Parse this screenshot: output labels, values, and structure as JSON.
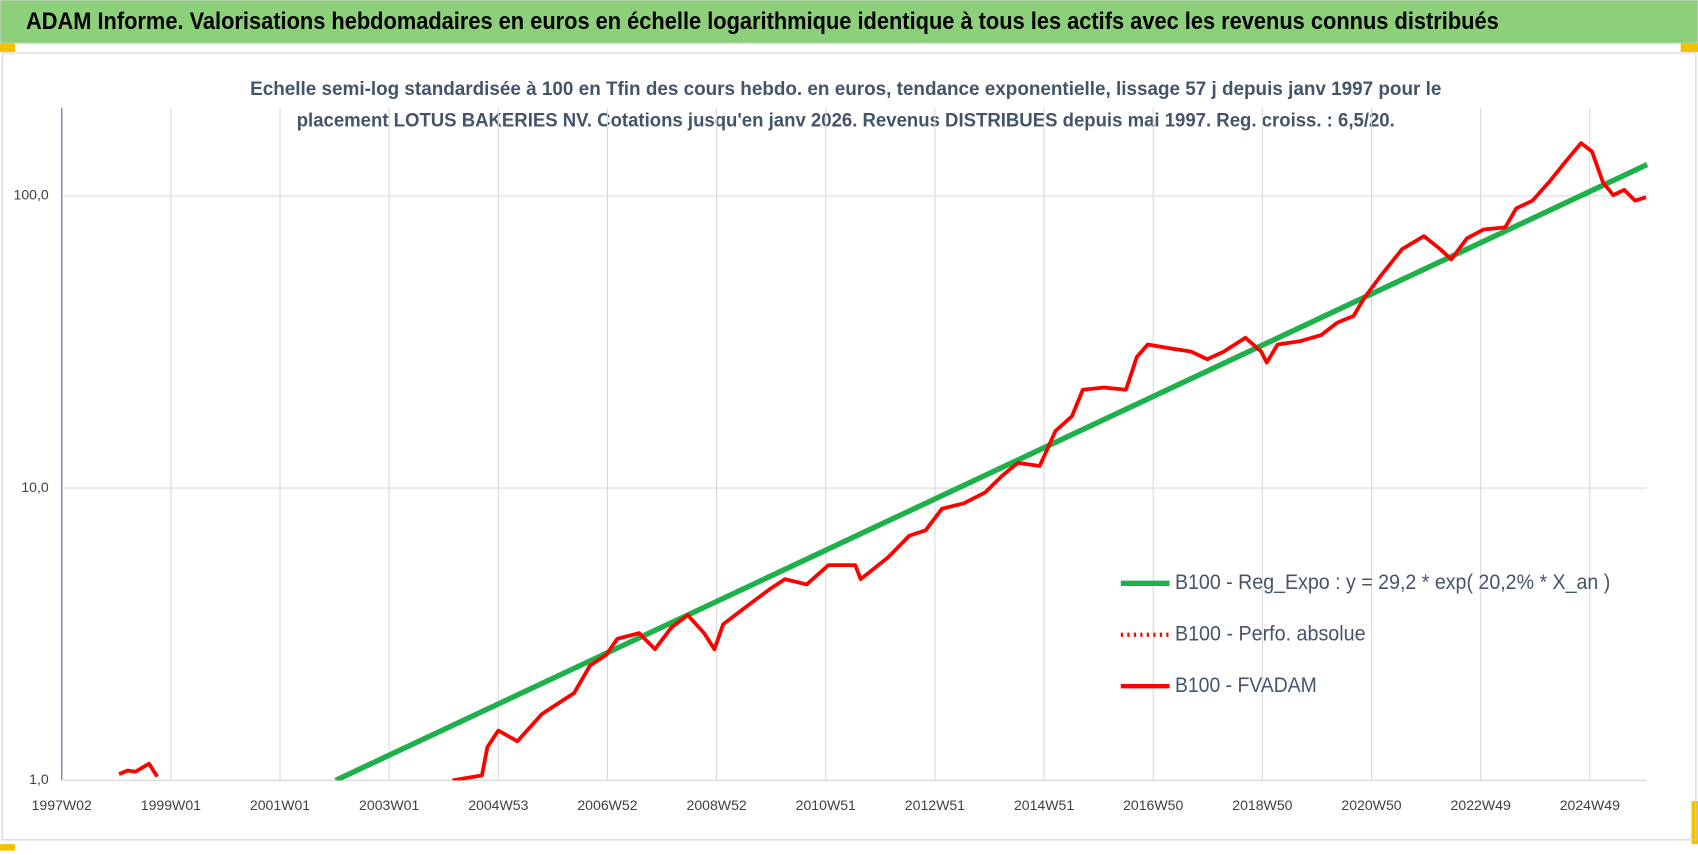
{
  "chart_data": {
    "type": "line",
    "title": "ADAM Informe. Valorisations hebdomadaires en euros en échelle logarithmique identique à tous les actifs avec les revenus connus distribués",
    "subtitle": [
      "Echelle semi-log standardisée à 100 en Tfin des cours hebdo. en euros, tendance exponentielle, lissage 57 j depuis janv 1997 pour le",
      "placement LOTUS BAKERIES NV. Cotations jusqu'en janv 2026. Revenus DISTRIBUES depuis mai 1997. Reg. croiss. : 6,5/20."
    ],
    "log_scale": true,
    "grid": true,
    "xlim": [
      1997,
      2026.03
    ],
    "ylim": [
      1,
      200
    ],
    "xticks": [
      {
        "value": 1997,
        "label": "1997W02"
      },
      {
        "value": 1999,
        "label": "1999W01"
      },
      {
        "value": 2001,
        "label": "2001W01"
      },
      {
        "value": 2003,
        "label": "2003W01"
      },
      {
        "value": 2005,
        "label": "2004W53"
      },
      {
        "value": 2007,
        "label": "2006W52"
      },
      {
        "value": 2009,
        "label": "2008W52"
      },
      {
        "value": 2011,
        "label": "2010W51"
      },
      {
        "value": 2013,
        "label": "2012W51"
      },
      {
        "value": 2015,
        "label": "2014W51"
      },
      {
        "value": 2017,
        "label": "2016W50"
      },
      {
        "value": 2019,
        "label": "2018W50"
      },
      {
        "value": 2021,
        "label": "2020W50"
      },
      {
        "value": 2023,
        "label": "2022W49"
      },
      {
        "value": 2025,
        "label": "2024W49"
      }
    ],
    "yticks": [
      {
        "value": 1,
        "label": "1,0"
      },
      {
        "value": 10,
        "label": "10,0"
      },
      {
        "value": 100,
        "label": "100,0"
      }
    ],
    "legend": "lower right",
    "series": [
      {
        "name": "B100 - Reg_Expo : y = 29,2 * exp( 20,2% *  X_an )",
        "color": "#1db04b",
        "dash": "solid",
        "x": [
          2002.02,
          2026.05
        ],
        "values": [
          1,
          128
        ]
      },
      {
        "name": "B100 - Perfo. absolue",
        "color": "#ff0000",
        "dash": "dotted",
        "x": [],
        "values": []
      },
      {
        "name": "B100 - FVADAM",
        "color": "#ff0000",
        "dash": "solid",
        "x": [
          1998.05,
          1998.21,
          1998.35,
          1998.6,
          1998.75,
          null,
          2004.16,
          2004.7,
          2004.8,
          2005.0,
          2005.35,
          2005.79,
          2006.09,
          2006.39,
          2006.68,
          2006.98,
          2007.18,
          2007.58,
          2007.87,
          2008.17,
          2008.47,
          2008.77,
          2008.96,
          2009.12,
          2009.56,
          2009.96,
          2010.25,
          2010.65,
          2011.05,
          2011.54,
          2011.64,
          2012.14,
          2012.53,
          2012.83,
          2013.13,
          2013.53,
          2013.92,
          2014.22,
          2014.52,
          2014.92,
          2015.21,
          2015.51,
          2015.71,
          2016.1,
          2016.5,
          2016.7,
          2016.9,
          2017.3,
          2017.7,
          2017.99,
          2018.29,
          2018.69,
          2018.98,
          2019.08,
          2019.28,
          2019.68,
          2020.08,
          2020.37,
          2020.67,
          2020.87,
          2021.17,
          2021.56,
          2021.96,
          2022.26,
          2022.46,
          2022.75,
          2023.05,
          2023.45,
          2023.65,
          2023.95,
          2024.25,
          2024.54,
          2024.84,
          2025.04,
          2025.24,
          2025.43,
          2025.63,
          2025.83,
          2026.03
        ],
        "values": [
          1.05,
          1.08,
          1.07,
          1.14,
          1.03,
          null,
          1.0,
          1.04,
          1.3,
          1.48,
          1.36,
          1.68,
          1.83,
          1.99,
          2.47,
          2.69,
          3.05,
          3.19,
          2.81,
          3.33,
          3.68,
          3.19,
          2.81,
          3.42,
          3.95,
          4.49,
          4.88,
          4.68,
          5.45,
          5.45,
          4.88,
          5.79,
          6.87,
          7.17,
          8.5,
          8.87,
          9.66,
          10.97,
          12.2,
          11.9,
          15.7,
          17.6,
          21.7,
          22.1,
          21.7,
          28.1,
          31.0,
          30.1,
          29.3,
          27.6,
          29.3,
          32.7,
          29.3,
          26.9,
          31.0,
          31.8,
          33.4,
          36.8,
          38.8,
          44.8,
          53.3,
          65.7,
          72.8,
          65.7,
          60.6,
          71.6,
          76.7,
          78.0,
          90.6,
          96.3,
          111.3,
          129.9,
          151.6,
          141.8,
          111.3,
          100.6,
          104.9,
          96.3,
          99.0
        ]
      }
    ]
  }
}
